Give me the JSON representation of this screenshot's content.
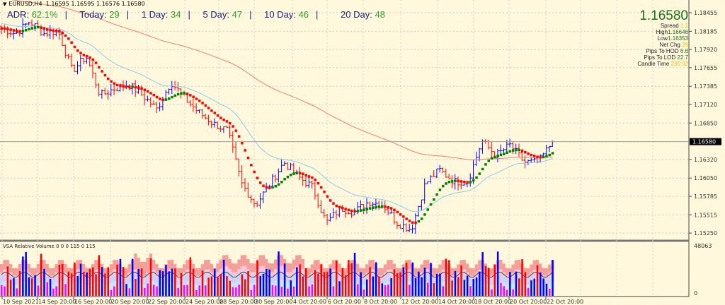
{
  "header": {
    "symbol": "EURUSD,H4",
    "ohlc": "1.16595 1.16595 1.16576 1.16580"
  },
  "adr": {
    "items": [
      {
        "label": "ADR:",
        "value": "62.1%"
      },
      {
        "label": "Today:",
        "value": "29"
      },
      {
        "label": "1 Day:",
        "value": "34"
      },
      {
        "label": "5 Day:",
        "value": "47"
      },
      {
        "label": "10 Day:",
        "value": "46"
      },
      {
        "label": "20 Day:",
        "value": "48"
      }
    ]
  },
  "info_panel": {
    "price": "1.16580",
    "rows": [
      {
        "label": "Spread",
        "value": "1.1"
      },
      {
        "label": "High",
        "value": "1.16646"
      },
      {
        "label": "Low",
        "value": "1.16353"
      },
      {
        "label": "Net Chg",
        "value": "29"
      },
      {
        "label": "Pips To HOD",
        "value": "6.6"
      },
      {
        "label": "Pips To LOD",
        "value": "22.7"
      },
      {
        "label": "Candle Time",
        "value": "235:02"
      }
    ]
  },
  "volume_panel": {
    "title": "VSA Relative Volume 0 0 0 115 0 115",
    "max_label": "48063",
    "min_label": "0"
  },
  "chart_data": {
    "type": "candlestick",
    "symbol": "EURUSD",
    "timeframe": "H4",
    "current_price": 1.1658,
    "price_ticks": [
      1.18455,
      1.18185,
      1.1792,
      1.17655,
      1.17385,
      1.1712,
      1.1685,
      1.1658,
      1.1632,
      1.1605,
      1.15785,
      1.15515,
      1.1525
    ],
    "ylim": [
      1.1505,
      1.1864
    ],
    "time_labels": [
      "10 Sep 2021",
      "14 Sep 20:00",
      "16 Sep 20:00",
      "20 Sep 20:00",
      "22 Sep 20:00",
      "24 Sep 20:00",
      "28 Sep 20:00",
      "30 Sep 20:00",
      "4 Oct 20:00",
      "6 Oct 20:00",
      "8 Oct 20:00",
      "12 Oct 20:00",
      "14 Oct 20:00",
      "18 Oct 20:00",
      "20 Oct 20:00",
      "22 Oct 20:00"
    ],
    "close_path": [
      1.1823,
      1.1815,
      1.1833,
      1.1815,
      1.182,
      1.1761,
      1.1782,
      1.1725,
      1.1735,
      1.1741,
      1.1725,
      1.1705,
      1.1745,
      1.172,
      1.17,
      1.1684,
      1.1674,
      1.1597,
      1.1566,
      1.1597,
      1.1628,
      1.1607,
      1.1592,
      1.154,
      1.1561,
      1.1556,
      1.1571,
      1.1566,
      1.154,
      1.153,
      1.1597,
      1.1617,
      1.16,
      1.16,
      1.1659,
      1.1638,
      1.1653,
      1.1628,
      1.1628,
      1.1658
    ],
    "colors": {
      "up": "#0000ff",
      "down": "#ff0000",
      "trend_up": "#008000",
      "trend_down": "#ff0000",
      "ma_slow": "#f08070",
      "ma_mid": "#87ceeb",
      "background": "#fff8dc"
    }
  }
}
